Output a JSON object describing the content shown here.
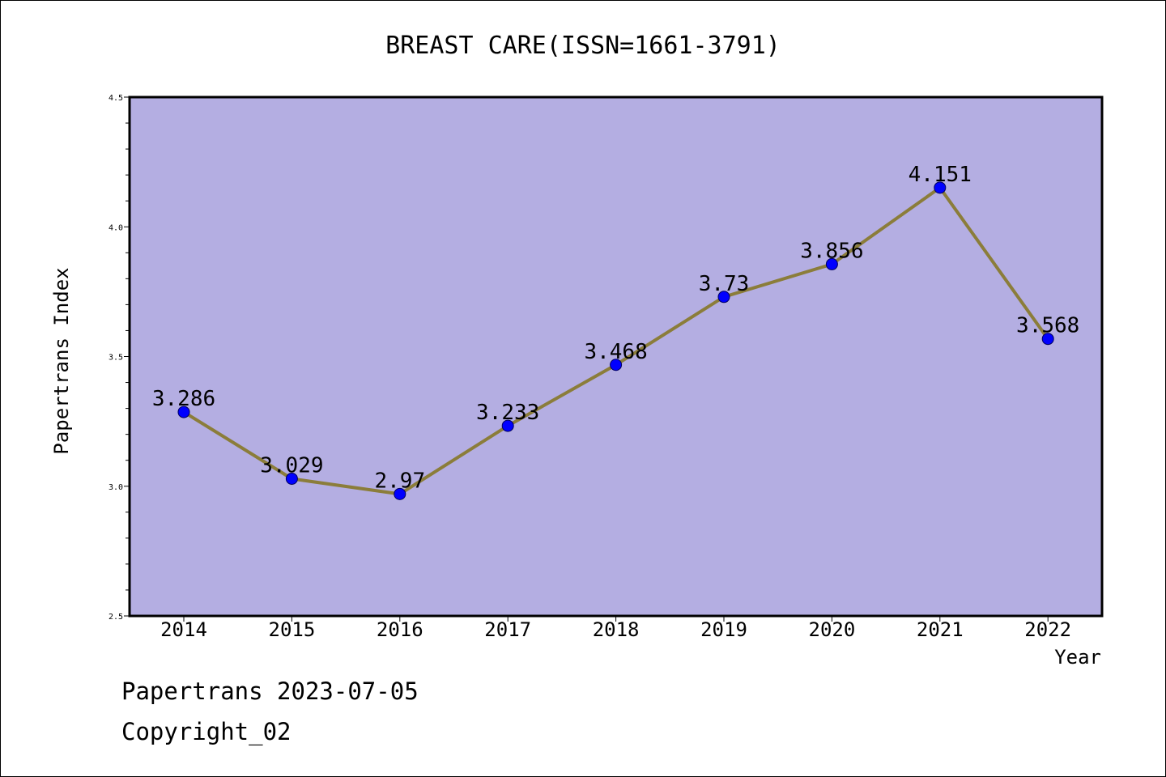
{
  "chart_data": {
    "type": "line",
    "title": "BREAST CARE(ISSN=1661-3791)",
    "xlabel": "Year",
    "ylabel": "Papertrans Index",
    "categories": [
      "2014",
      "2015",
      "2016",
      "2017",
      "2018",
      "2019",
      "2020",
      "2021",
      "2022"
    ],
    "values": [
      3.286,
      3.029,
      2.97,
      3.233,
      3.468,
      3.73,
      3.856,
      4.151,
      3.568
    ],
    "value_labels": [
      "3.286",
      "3.029",
      "2.97",
      "3.233",
      "3.468",
      "3.73",
      "3.856",
      "4.151",
      "3.568"
    ],
    "ylim": [
      2.5,
      4.5
    ],
    "yticks": [
      "2.5",
      "3.0",
      "3.5",
      "4.0",
      "4.5"
    ],
    "grid": false,
    "colors": {
      "plot_background": "#b4aee2",
      "line": "#8b7d3a",
      "marker": "#0000ff"
    }
  },
  "footer": {
    "date_text": "Papertrans 2023-07-05",
    "copyright_text": "Copyright_02"
  }
}
